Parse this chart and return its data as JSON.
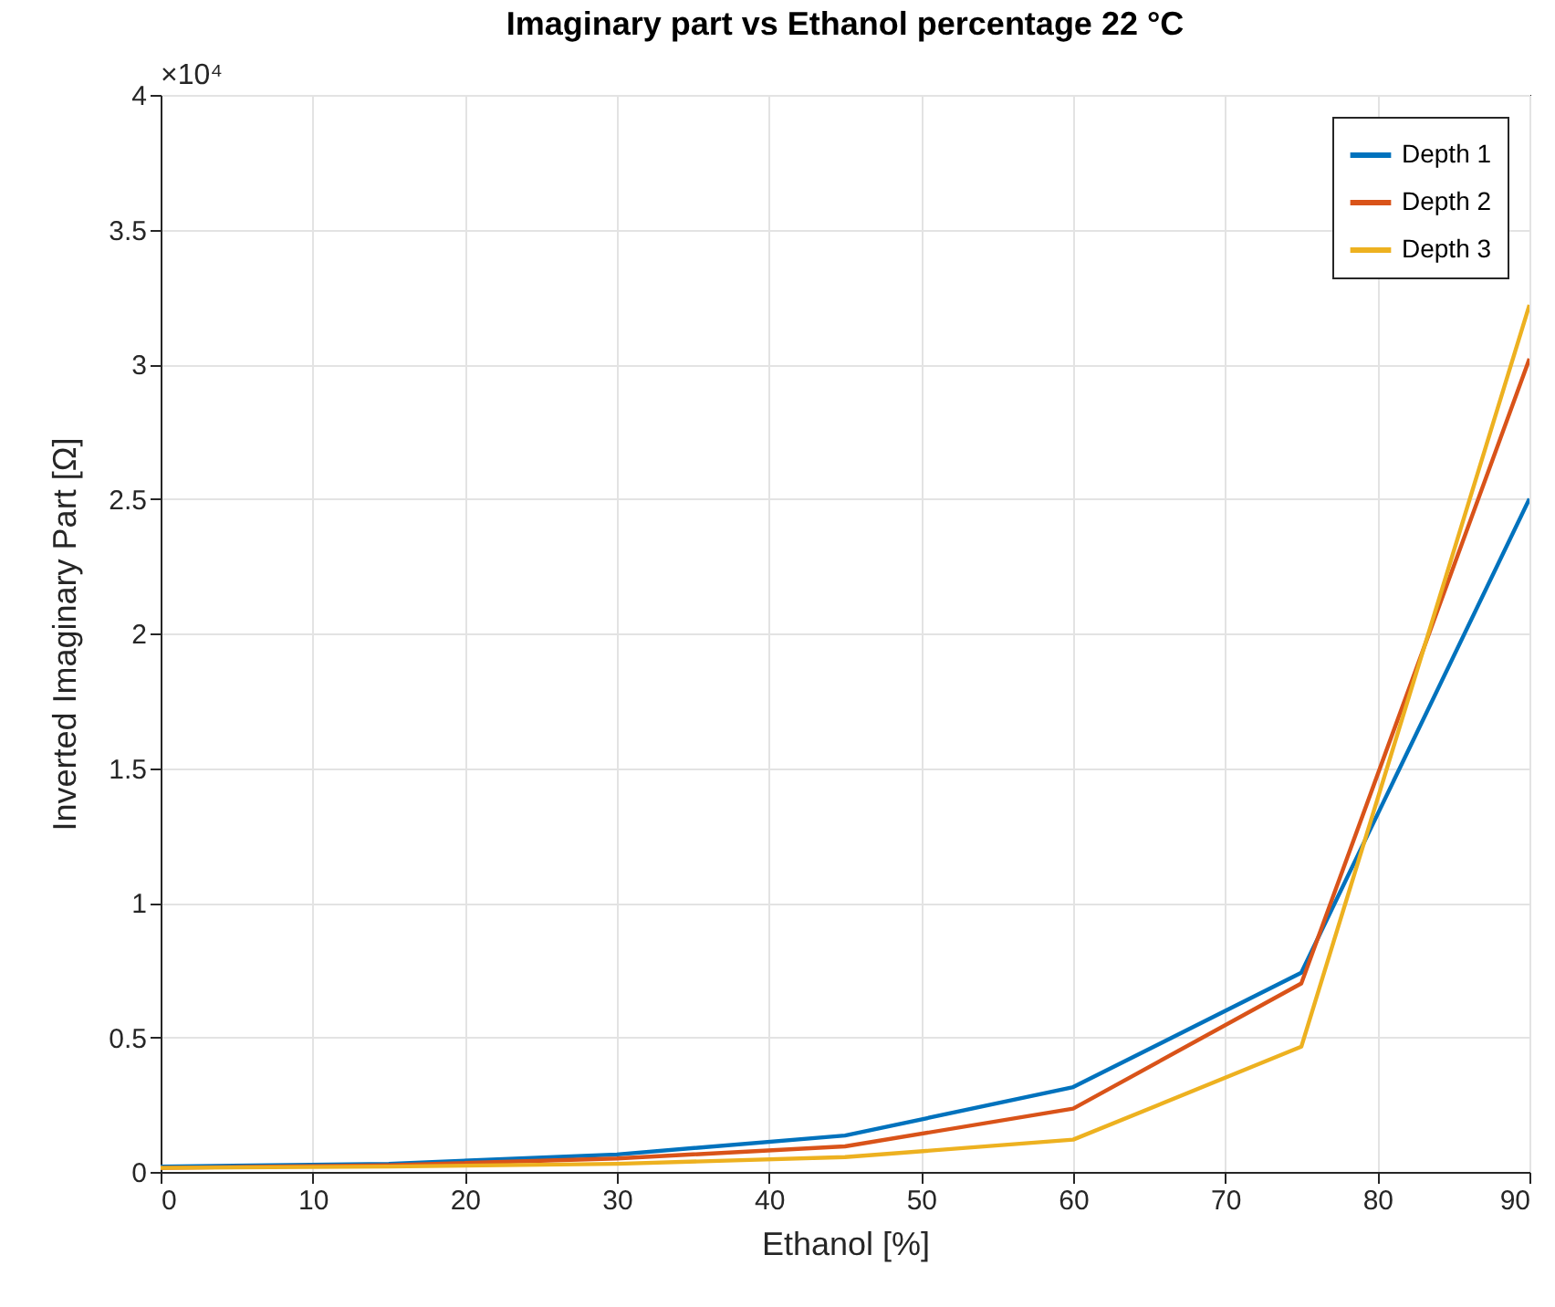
{
  "chart_data": {
    "type": "line",
    "title": "Imaginary part vs Ethanol percentage 22 °C",
    "xlabel": "Ethanol [%]",
    "ylabel": "Inverted Imaginary Part [Ω]",
    "annotations": [
      "×10⁴"
    ],
    "x": [
      0,
      15,
      30,
      45,
      60,
      75,
      90
    ],
    "series": [
      {
        "name": "Depth 1",
        "color": "#0072bd",
        "values": [
          0.02,
          0.03,
          0.065,
          0.135,
          0.315,
          0.74,
          2.5
        ]
      },
      {
        "name": "Depth 2",
        "color": "#d95319",
        "values": [
          0.015,
          0.025,
          0.05,
          0.095,
          0.235,
          0.7,
          3.02
        ]
      },
      {
        "name": "Depth 3",
        "color": "#edb120",
        "values": [
          0.015,
          0.02,
          0.03,
          0.055,
          0.12,
          0.465,
          3.22
        ]
      }
    ],
    "xlim": [
      0,
      90
    ],
    "xticks": [
      0,
      10,
      20,
      30,
      40,
      50,
      60,
      70,
      80,
      90
    ],
    "ylim": [
      0,
      4
    ],
    "yticks": [
      0,
      0.5,
      1,
      1.5,
      2,
      2.5,
      3,
      3.5,
      4
    ],
    "grid": true,
    "legend": "top right",
    "marker": "none",
    "line_style": "solid"
  }
}
